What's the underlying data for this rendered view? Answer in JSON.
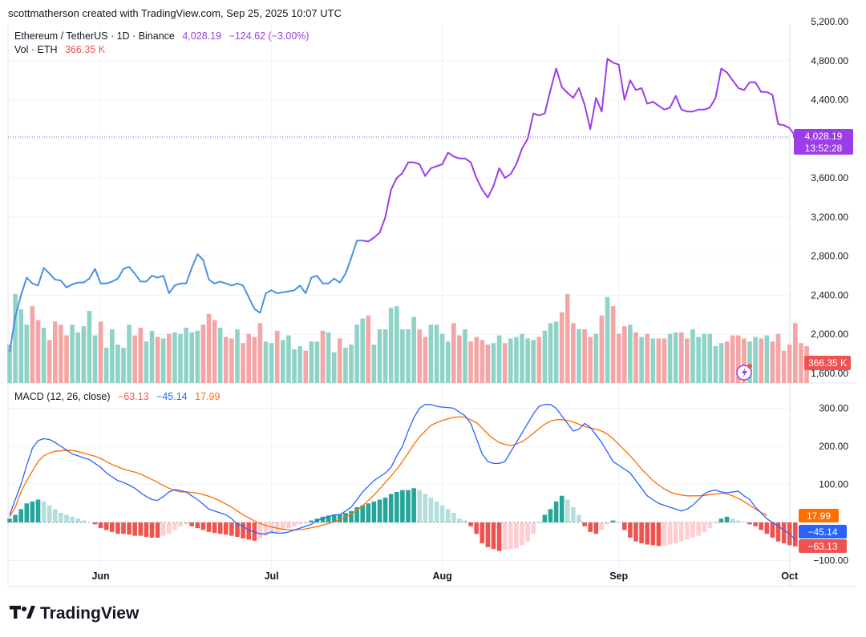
{
  "header": {
    "attribution": "scottmatherson created with TradingView.com, Sep 25, 2025 10:07 UTC"
  },
  "legend": {
    "symbol": "Ethereum / TetherUS · 1D · Binance",
    "last_price": "4,028.19",
    "change": "−124.62 (−3.00%)",
    "vol_label": "Vol · ETH",
    "vol_value": "366.35 K",
    "macd_label": "MACD (12, 26, close)",
    "macd_hist": "−63.13",
    "macd_line": "−45.14",
    "macd_signal": "17.99"
  },
  "badges": {
    "price": "4,028.19",
    "countdown": "13:52:28",
    "volume": "366.35 K",
    "signal": "17.99",
    "macd": "−45.14",
    "hist": "−63.13"
  },
  "branding": {
    "logo_text": "TradingView"
  },
  "colors": {
    "price_line_before": "#4a90e2",
    "price_line_after": "#9b3ee8",
    "vol_up": "#8fd3c7",
    "vol_down": "#f4a5a5",
    "macd_line": "#2962ff",
    "signal_line": "#ff6d00",
    "hist_up_strong": "#26a69a",
    "hist_up_weak": "#b2dfdb",
    "hist_down_strong": "#ef5350",
    "hist_down_weak": "#ffcdd2"
  },
  "chart_data": [
    {
      "type": "line",
      "title": "Ethereum / TetherUS · 1D · Binance",
      "ylim": [
        1520,
        5220
      ],
      "y_ticks": [
        "1,600.00",
        "2,000.00",
        "2,400.00",
        "2,800.00",
        "3,200.00",
        "3,600.00",
        "4,000.00",
        "4,400.00",
        "4,800.00",
        "5,200.00"
      ],
      "y_tick_values": [
        1600,
        2000,
        2400,
        2800,
        3200,
        3600,
        4000,
        4400,
        4800,
        5200
      ],
      "x_ticks": [
        "Jun",
        "Jul",
        "Aug",
        "Sep",
        "Oct"
      ],
      "x_tick_days": [
        16,
        46,
        76,
        107,
        137
      ],
      "series": [
        {
          "values": [
            1820,
            2180,
            2400,
            2580,
            2520,
            2500,
            2680,
            2620,
            2560,
            2550,
            2480,
            2510,
            2530,
            2530,
            2570,
            2670,
            2520,
            2520,
            2540,
            2570,
            2670,
            2690,
            2620,
            2540,
            2540,
            2600,
            2580,
            2600,
            2420,
            2500,
            2520,
            2520,
            2680,
            2820,
            2760,
            2560,
            2520,
            2540,
            2520,
            2500,
            2520,
            2500,
            2380,
            2260,
            2220,
            2420,
            2450,
            2420,
            2430,
            2440,
            2450,
            2500,
            2420,
            2580,
            2600,
            2520,
            2520,
            2570,
            2530,
            2620,
            2780,
            2960,
            2960,
            2950,
            2990,
            3040,
            3200,
            3480,
            3600,
            3650,
            3760,
            3760,
            3740,
            3620,
            3700,
            3720,
            3740,
            3860,
            3820,
            3800,
            3800,
            3760,
            3600,
            3480,
            3400,
            3520,
            3700,
            3600,
            3640,
            3740,
            3900,
            4000,
            4260,
            4240,
            4260,
            4500,
            4720,
            4530,
            4470,
            4420,
            4520,
            4350,
            4100,
            4420,
            4280,
            4820,
            4780,
            4760,
            4400,
            4600,
            4500,
            4520,
            4360,
            4380,
            4340,
            4300,
            4320,
            4440,
            4300,
            4280,
            4280,
            4300,
            4300,
            4320,
            4420,
            4720,
            4680,
            4600,
            4520,
            4500,
            4580,
            4580,
            4480,
            4480,
            4450,
            4150,
            4140,
            4110,
            4028.19
          ]
        }
      ],
      "last_value": 4028.19
    },
    {
      "type": "bar",
      "title": "Vol · ETH",
      "ylim": [
        0,
        600
      ],
      "values": [
        250,
        580,
        480,
        380,
        500,
        410,
        360,
        280,
        400,
        380,
        310,
        380,
        330,
        370,
        470,
        310,
        400,
        230,
        350,
        250,
        230,
        380,
        310,
        360,
        270,
        340,
        300,
        290,
        320,
        330,
        320,
        360,
        330,
        340,
        380,
        450,
        410,
        360,
        300,
        290,
        350,
        260,
        320,
        300,
        390,
        270,
        260,
        340,
        280,
        310,
        220,
        240,
        210,
        270,
        270,
        340,
        330,
        200,
        290,
        230,
        250,
        380,
        420,
        440,
        250,
        350,
        350,
        490,
        500,
        350,
        350,
        430,
        350,
        300,
        380,
        380,
        320,
        270,
        390,
        310,
        350,
        270,
        300,
        280,
        250,
        260,
        310,
        260,
        290,
        300,
        320,
        290,
        280,
        300,
        340,
        390,
        400,
        460,
        580,
        390,
        350,
        350,
        300,
        320,
        440,
        560,
        500,
        320,
        370,
        380,
        330,
        300,
        320,
        290,
        290,
        290,
        320,
        330,
        330,
        290,
        350,
        300,
        320,
        320,
        240,
        260,
        270,
        310,
        310,
        290,
        270,
        300,
        290,
        310,
        270,
        320,
        210,
        250,
        390,
        260,
        240
      ]
    },
    {
      "type": "line",
      "title": "MACD (12, 26, close)",
      "ylim": [
        -120,
        320
      ],
      "y_ticks": [
        "−100.00",
        "100.00",
        "200.00",
        "300.00"
      ],
      "y_tick_values": [
        -100,
        100,
        200,
        300
      ],
      "series": [
        {
          "name": "MACD",
          "values": [
            20,
            60,
            100,
            150,
            195,
            215,
            220,
            218,
            210,
            200,
            190,
            180,
            175,
            170,
            165,
            155,
            145,
            130,
            120,
            110,
            105,
            98,
            90,
            78,
            68,
            60,
            58,
            68,
            80,
            86,
            84,
            80,
            70,
            60,
            48,
            35,
            30,
            25,
            20,
            10,
            -5,
            -10,
            -20,
            -25,
            -30,
            -30,
            -25,
            -28,
            -28,
            -25,
            -20,
            -15,
            -10,
            -5,
            5,
            10,
            15,
            20,
            20,
            30,
            40,
            60,
            80,
            95,
            110,
            120,
            130,
            145,
            175,
            200,
            240,
            275,
            300,
            310,
            310,
            305,
            303,
            302,
            300,
            290,
            280,
            260,
            220,
            180,
            160,
            155,
            155,
            160,
            185,
            210,
            235,
            260,
            285,
            305,
            310,
            310,
            300,
            280,
            260,
            240,
            245,
            260,
            250,
            230,
            210,
            185,
            160,
            150,
            140,
            130,
            110,
            90,
            70,
            60,
            50,
            45,
            40,
            35,
            30,
            35,
            45,
            60,
            75,
            82,
            85,
            80,
            78,
            80,
            82,
            70,
            60,
            40,
            25,
            10,
            0,
            -10,
            -20,
            -30,
            -45.14
          ]
        },
        {
          "name": "Signal",
          "values": [
            15,
            40,
            80,
            110,
            135,
            160,
            175,
            183,
            187,
            188,
            190,
            189,
            186,
            182,
            178,
            174,
            168,
            160,
            152,
            146,
            140,
            136,
            132,
            127,
            120,
            113,
            105,
            97,
            90,
            84,
            80,
            80,
            79,
            77,
            73,
            69,
            63,
            56,
            48,
            40,
            30,
            20,
            12,
            4,
            -3,
            -8,
            -12,
            -15,
            -18,
            -19,
            -20,
            -19,
            -17,
            -14,
            -11,
            -7,
            -3,
            2,
            8,
            14,
            22,
            32,
            44,
            58,
            72,
            88,
            105,
            122,
            140,
            160,
            182,
            205,
            225,
            240,
            255,
            262,
            268,
            272,
            276,
            278,
            276,
            270,
            262,
            248,
            232,
            220,
            210,
            205,
            202,
            206,
            212,
            222,
            234,
            247,
            258,
            266,
            270,
            270,
            268,
            264,
            258,
            252,
            248,
            245,
            240,
            232,
            220,
            205,
            190,
            175,
            158,
            140,
            125,
            110,
            98,
            88,
            80,
            75,
            72,
            70,
            70,
            70,
            71,
            73,
            75,
            76,
            75,
            70,
            63,
            55,
            45,
            35,
            26,
            17.99
          ]
        },
        {
          "name": "Histogram",
          "values": [
            10,
            20,
            35,
            50,
            55,
            60,
            55,
            45,
            35,
            25,
            20,
            15,
            10,
            5,
            0,
            -5,
            -15,
            -20,
            -25,
            -30,
            -30,
            -32,
            -35,
            -35,
            -38,
            -40,
            -40,
            -35,
            -30,
            -20,
            -10,
            -5,
            -10,
            -15,
            -20,
            -25,
            -28,
            -30,
            -32,
            -35,
            -38,
            -42,
            -45,
            -48,
            -42,
            -35,
            -30,
            -25,
            -20,
            -15,
            -10,
            -5,
            0,
            5,
            10,
            15,
            18,
            20,
            22,
            25,
            30,
            40,
            45,
            50,
            55,
            60,
            65,
            75,
            80,
            85,
            85,
            90,
            85,
            75,
            65,
            55,
            45,
            35,
            25,
            10,
            5,
            -10,
            -30,
            -55,
            -65,
            -70,
            -75,
            -72,
            -70,
            -68,
            -60,
            -50,
            -30,
            0,
            20,
            35,
            55,
            70,
            60,
            40,
            20,
            -10,
            -25,
            -30,
            -20,
            -5,
            5,
            0,
            -20,
            -40,
            -50,
            -55,
            -58,
            -60,
            -62,
            -60,
            -58,
            -55,
            -50,
            -45,
            -40,
            -35,
            -25,
            -15,
            0,
            10,
            15,
            10,
            5,
            0,
            -5,
            -10,
            -20,
            -30,
            -40,
            -50,
            -55,
            -60,
            -63.13
          ]
        }
      ]
    }
  ]
}
